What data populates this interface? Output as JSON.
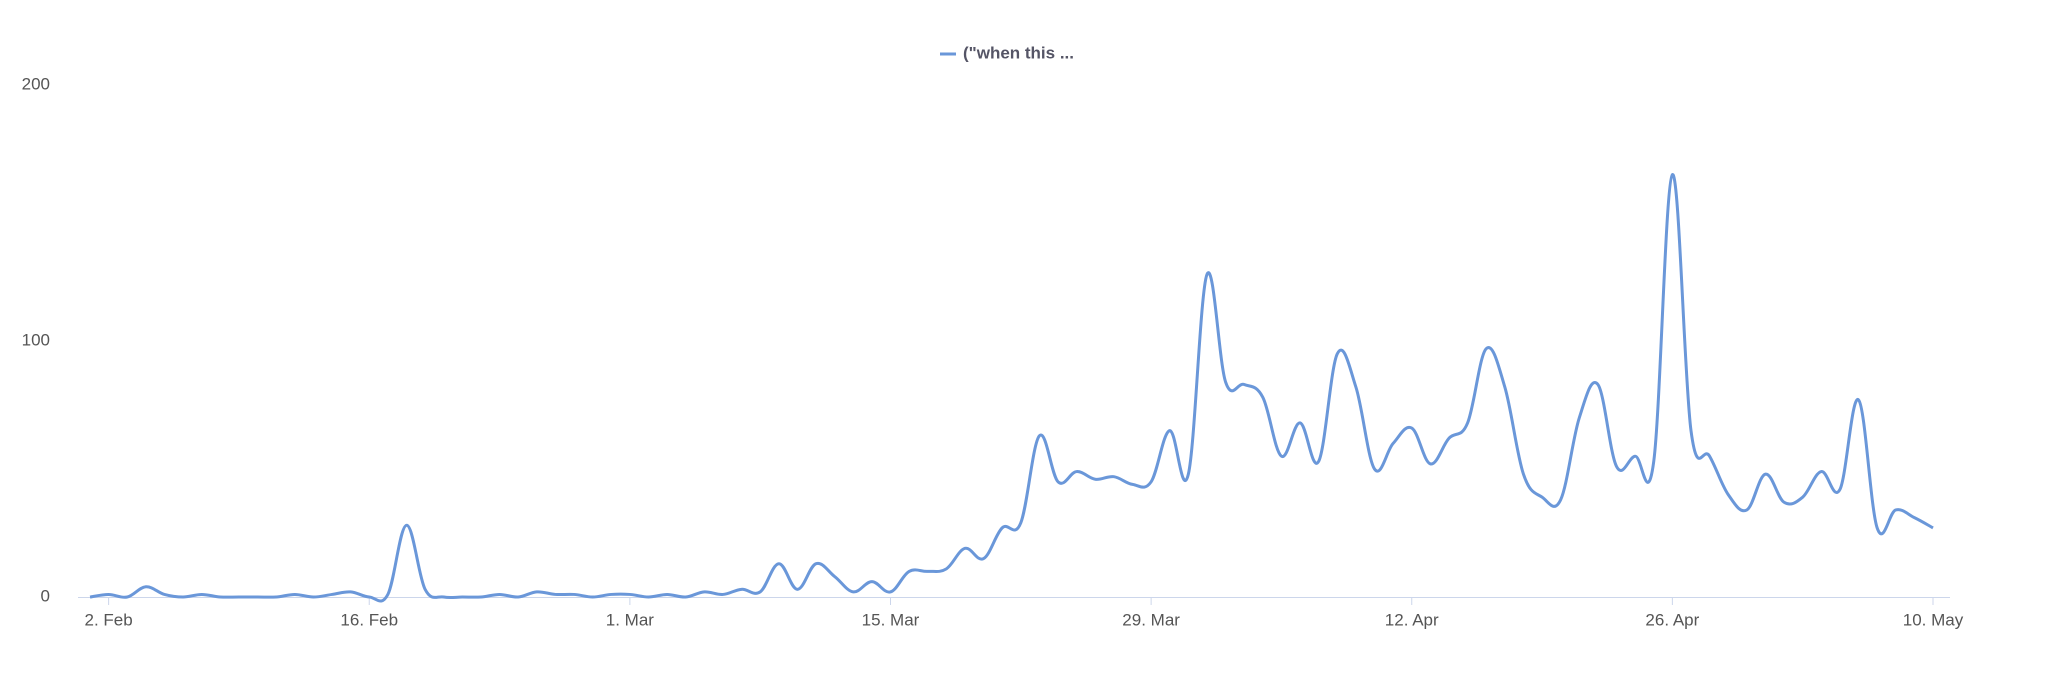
{
  "chart_data": {
    "type": "line",
    "x": [
      "1. Feb",
      "2. Feb",
      "3. Feb",
      "4. Feb",
      "5. Feb",
      "6. Feb",
      "7. Feb",
      "8. Feb",
      "9. Feb",
      "10. Feb",
      "11. Feb",
      "12. Feb",
      "13. Feb",
      "14. Feb",
      "15. Feb",
      "16. Feb",
      "17. Feb",
      "18. Feb",
      "19. Feb",
      "20. Feb",
      "21. Feb",
      "22. Feb",
      "23. Feb",
      "24. Feb",
      "25. Feb",
      "26. Feb",
      "27. Feb",
      "28. Feb",
      "29. Feb",
      "1. Mar",
      "2. Mar",
      "3. Mar",
      "4. Mar",
      "5. Mar",
      "6. Mar",
      "7. Mar",
      "8. Mar",
      "9. Mar",
      "10. Mar",
      "11. Mar",
      "12. Mar",
      "13. Mar",
      "14. Mar",
      "15. Mar",
      "16. Mar",
      "17. Mar",
      "18. Mar",
      "19. Mar",
      "20. Mar",
      "21. Mar",
      "22. Mar",
      "23. Mar",
      "24. Mar",
      "25. Mar",
      "26. Mar",
      "27. Mar",
      "28. Mar",
      "29. Mar",
      "30. Mar",
      "31. Mar",
      "1. Apr",
      "2. Apr",
      "3. Apr",
      "4. Apr",
      "5. Apr",
      "6. Apr",
      "7. Apr",
      "8. Apr",
      "9. Apr",
      "10. Apr",
      "11. Apr",
      "12. Apr",
      "13. Apr",
      "14. Apr",
      "15. Apr",
      "16. Apr",
      "17. Apr",
      "18. Apr",
      "19. Apr",
      "20. Apr",
      "21. Apr",
      "22. Apr",
      "23. Apr",
      "24. Apr",
      "25. Apr",
      "26. Apr",
      "27. Apr",
      "28. Apr",
      "29. Apr",
      "30. Apr",
      "1. May",
      "2. May",
      "3. May",
      "4. May",
      "5. May",
      "6. May",
      "7. May",
      "8. May",
      "9. May",
      "10. May"
    ],
    "series": [
      {
        "name": "(\"when this ...",
        "color": "#6a97d9",
        "values": [
          0,
          1,
          0,
          4,
          1,
          0,
          1,
          0,
          0,
          0,
          0,
          1,
          0,
          1,
          2,
          0,
          1,
          28,
          3,
          0,
          0,
          0,
          1,
          0,
          2,
          1,
          1,
          0,
          1,
          1,
          0,
          1,
          0,
          2,
          1,
          3,
          2,
          13,
          3,
          13,
          8,
          2,
          6,
          2,
          10,
          10,
          11,
          19,
          15,
          27,
          29,
          63,
          45,
          49,
          46,
          47,
          44,
          45,
          65,
          48,
          126,
          84,
          83,
          78,
          55,
          68,
          53,
          95,
          82,
          50,
          60,
          66,
          52,
          62,
          68,
          97,
          82,
          48,
          39,
          38,
          70,
          83,
          51,
          55,
          53,
          165,
          65,
          55,
          40,
          34,
          48,
          37,
          39,
          49,
          42,
          77,
          27,
          34,
          31,
          27
        ]
      }
    ],
    "xticks": [
      "2. Feb",
      "16. Feb",
      "1. Mar",
      "15. Mar",
      "29. Mar",
      "12. Apr",
      "26. Apr",
      "10. May"
    ],
    "ylim": [
      0,
      200
    ],
    "yticks": [
      0,
      100,
      200
    ],
    "grid": false
  }
}
